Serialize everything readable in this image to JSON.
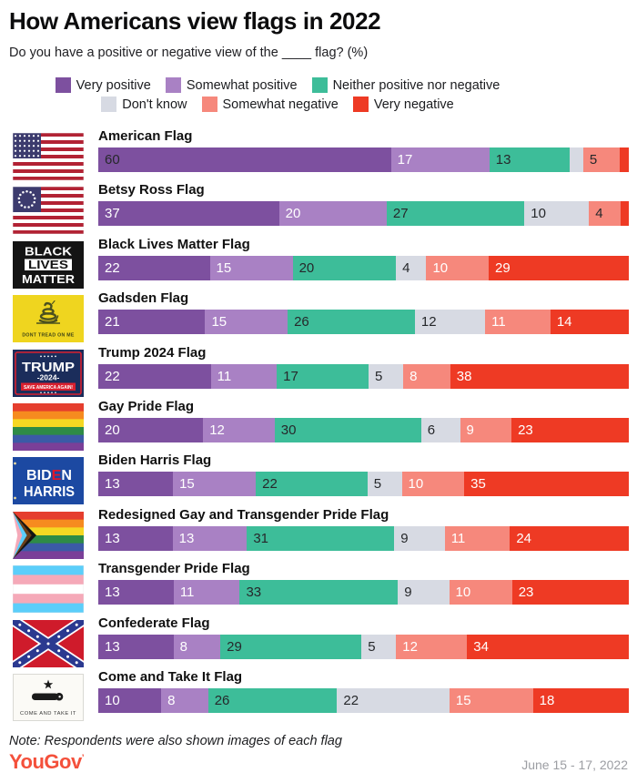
{
  "title": "How Americans view flags in 2022",
  "subtitle": "Do you have a positive or negative view of the ____ flag? (%)",
  "note": "Note: Respondents were also shown images of each flag",
  "brand": {
    "name": "YouGov",
    "mark": "’",
    "color": "#f4503b"
  },
  "date_range": "June 15 - 17, 2022",
  "legend_rows": [
    [
      0,
      1,
      2
    ],
    [
      3,
      4,
      5
    ]
  ],
  "chart_data": {
    "type": "bar",
    "stacked": true,
    "orientation": "horizontal",
    "unit": "%",
    "axis": "each bar spans 0-100%",
    "series": [
      {
        "name": "Very positive",
        "color": "#7d509f"
      },
      {
        "name": "Somewhat positive",
        "color": "#a981c4"
      },
      {
        "name": "Neither positive nor negative",
        "color": "#3dbd99"
      },
      {
        "name": "Don't know",
        "color": "#d7dae3"
      },
      {
        "name": "Somewhat negative",
        "color": "#f6887c"
      },
      {
        "name": "Very negative",
        "color": "#ee3a24"
      }
    ],
    "rows": [
      {
        "flag": "American Flag",
        "icon": "american",
        "values": [
          60,
          17,
          13,
          3,
          5,
          2
        ],
        "shown_labels": [
          "60",
          "17",
          "13",
          "",
          "5",
          ""
        ],
        "dark_labels": [
          true,
          false,
          true,
          true,
          true,
          false
        ]
      },
      {
        "flag": "Betsy Ross Flag",
        "icon": "betsy-ross",
        "values": [
          37,
          20,
          27,
          10,
          4,
          2
        ],
        "shown_labels": [
          "37",
          "20",
          "27",
          "10",
          "4",
          ""
        ],
        "dark_labels": [
          false,
          false,
          true,
          true,
          true,
          false
        ]
      },
      {
        "flag": "Black Lives Matter Flag",
        "icon": "blm",
        "values": [
          22,
          15,
          20,
          4,
          10,
          29
        ],
        "shown_labels": [
          "22",
          "15",
          "20",
          "4",
          "10",
          "29"
        ],
        "dark_labels": [
          false,
          false,
          true,
          true,
          false,
          false
        ]
      },
      {
        "flag": "Gadsden Flag",
        "icon": "gadsden",
        "values": [
          21,
          15,
          26,
          12,
          11,
          14
        ],
        "shown_labels": [
          "21",
          "15",
          "26",
          "12",
          "11",
          "14"
        ],
        "dark_labels": [
          false,
          false,
          true,
          true,
          false,
          false
        ]
      },
      {
        "flag": "Trump 2024 Flag",
        "icon": "trump-2024",
        "values": [
          22,
          11,
          17,
          5,
          8,
          38
        ],
        "shown_labels": [
          "22",
          "11",
          "17",
          "5",
          "8",
          "38"
        ],
        "dark_labels": [
          false,
          false,
          true,
          true,
          false,
          false
        ]
      },
      {
        "flag": "Gay Pride Flag",
        "icon": "gay-pride",
        "values": [
          20,
          12,
          30,
          6,
          9,
          23
        ],
        "shown_labels": [
          "20",
          "12",
          "30",
          "6",
          "9",
          "23"
        ],
        "dark_labels": [
          false,
          false,
          true,
          true,
          false,
          false
        ]
      },
      {
        "flag": "Biden Harris Flag",
        "icon": "biden-harris",
        "values": [
          13,
          15,
          22,
          5,
          10,
          35
        ],
        "shown_labels": [
          "13",
          "15",
          "22",
          "5",
          "10",
          "35"
        ],
        "dark_labels": [
          false,
          false,
          true,
          true,
          false,
          false
        ]
      },
      {
        "flag": "Redesigned Gay and Transgender Pride Flag",
        "icon": "progress-pride",
        "values": [
          13,
          13,
          31,
          9,
          11,
          24
        ],
        "shown_labels": [
          "13",
          "13",
          "31",
          "9",
          "11",
          "24"
        ],
        "dark_labels": [
          false,
          false,
          true,
          true,
          false,
          false
        ]
      },
      {
        "flag": "Transgender Pride Flag",
        "icon": "transgender",
        "values": [
          13,
          11,
          33,
          9,
          10,
          23
        ],
        "shown_labels": [
          "13",
          "11",
          "33",
          "9",
          "10",
          "23"
        ],
        "dark_labels": [
          false,
          false,
          true,
          true,
          false,
          false
        ]
      },
      {
        "flag": "Confederate Flag",
        "icon": "confederate",
        "values": [
          13,
          8,
          29,
          5,
          12,
          34
        ],
        "shown_labels": [
          "13",
          "8",
          "29",
          "5",
          "12",
          "34"
        ],
        "dark_labels": [
          false,
          false,
          true,
          true,
          false,
          false
        ]
      },
      {
        "flag": "Come and Take It Flag",
        "icon": "come-and-take-it",
        "values": [
          10,
          8,
          26,
          22,
          15,
          18
        ],
        "shown_labels": [
          "10",
          "8",
          "26",
          "22",
          "15",
          "18"
        ],
        "dark_labels": [
          false,
          false,
          true,
          true,
          false,
          false
        ]
      }
    ]
  }
}
